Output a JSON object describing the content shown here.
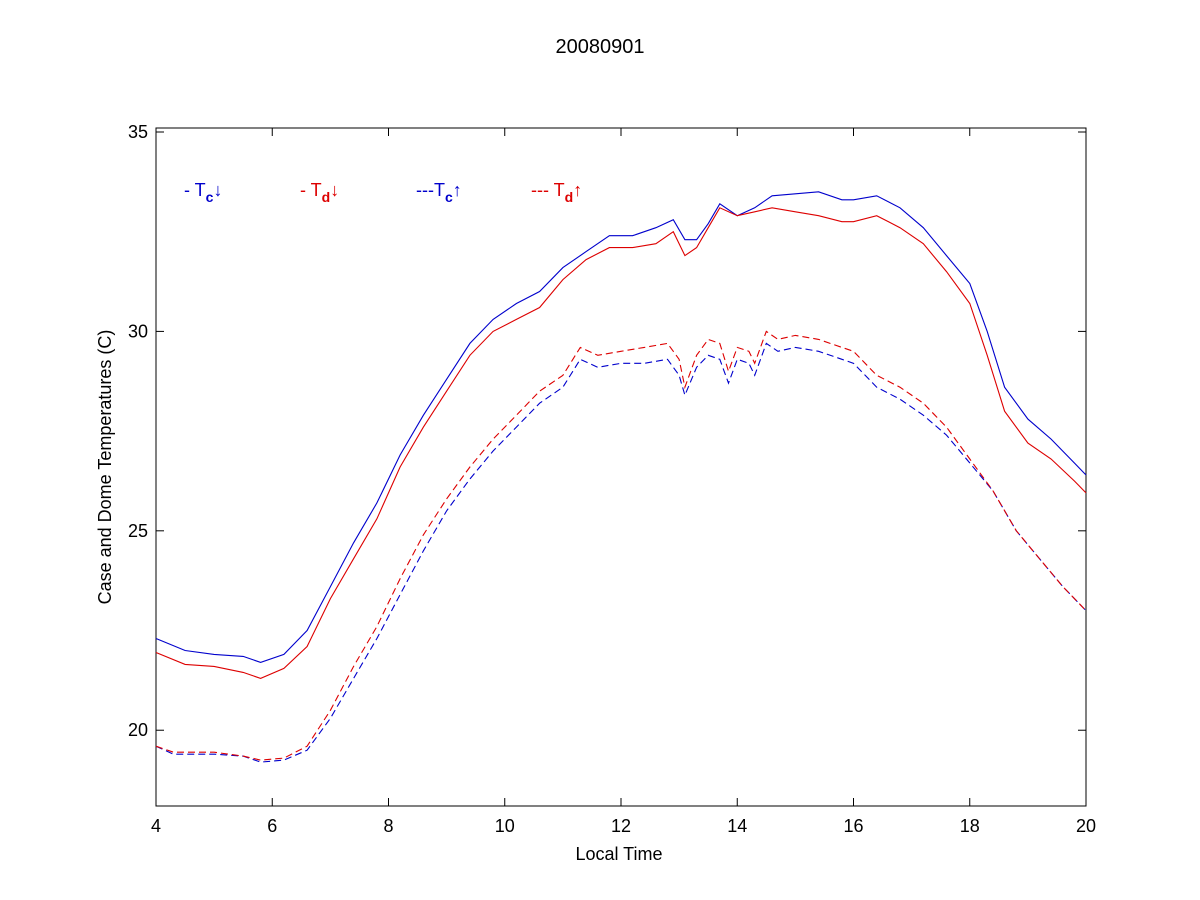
{
  "chart_data": {
    "type": "line",
    "title": "20080901",
    "xlabel": "Local Time",
    "ylabel": "Case and Dome Temperatures (C)",
    "xlim": [
      4,
      20
    ],
    "ylim": [
      18.1,
      35.1
    ],
    "xticks": [
      4,
      6,
      8,
      10,
      12,
      14,
      16,
      18,
      20
    ],
    "yticks": [
      20,
      25,
      30,
      35
    ],
    "grid": false,
    "legend_position": "top-left",
    "series": [
      {
        "label_prefix": "- T",
        "label_sub": "c",
        "label_arrow": "↓",
        "color": "#0000cc",
        "dash": "solid",
        "x": [
          4.0,
          4.5,
          5.0,
          5.5,
          5.8,
          6.2,
          6.6,
          7.0,
          7.4,
          7.8,
          8.2,
          8.6,
          9.0,
          9.4,
          9.8,
          10.2,
          10.6,
          11.0,
          11.4,
          11.8,
          12.2,
          12.6,
          12.9,
          13.1,
          13.3,
          13.5,
          13.7,
          14.0,
          14.3,
          14.6,
          15.0,
          15.4,
          15.8,
          16.0,
          16.4,
          16.8,
          17.2,
          17.6,
          18.0,
          18.3,
          18.6,
          19.0,
          19.4,
          19.8,
          20.0
        ],
        "y": [
          22.3,
          22.0,
          21.9,
          21.85,
          21.7,
          21.9,
          22.5,
          23.6,
          24.7,
          25.7,
          26.9,
          27.9,
          28.8,
          29.7,
          30.3,
          30.7,
          31.0,
          31.6,
          32.0,
          32.4,
          32.4,
          32.6,
          32.8,
          32.3,
          32.3,
          32.7,
          33.2,
          32.9,
          33.1,
          33.4,
          33.45,
          33.5,
          33.3,
          33.3,
          33.4,
          33.1,
          32.6,
          31.9,
          31.2,
          30.0,
          28.6,
          27.8,
          27.3,
          26.7,
          26.4
        ]
      },
      {
        "label_prefix": "- T",
        "label_sub": "d",
        "label_arrow": "↓",
        "color": "#dd0000",
        "dash": "solid",
        "x": [
          4.0,
          4.5,
          5.0,
          5.5,
          5.8,
          6.2,
          6.6,
          7.0,
          7.4,
          7.8,
          8.2,
          8.6,
          9.0,
          9.4,
          9.8,
          10.2,
          10.6,
          11.0,
          11.4,
          11.8,
          12.2,
          12.6,
          12.9,
          13.1,
          13.3,
          13.5,
          13.7,
          14.0,
          14.3,
          14.6,
          15.0,
          15.4,
          15.8,
          16.0,
          16.4,
          16.8,
          17.2,
          17.6,
          18.0,
          18.3,
          18.6,
          19.0,
          19.4,
          19.8,
          20.0
        ],
        "y": [
          21.95,
          21.65,
          21.6,
          21.45,
          21.3,
          21.55,
          22.1,
          23.3,
          24.3,
          25.3,
          26.6,
          27.6,
          28.5,
          29.4,
          30.0,
          30.3,
          30.6,
          31.3,
          31.8,
          32.1,
          32.1,
          32.2,
          32.5,
          31.9,
          32.1,
          32.6,
          33.1,
          32.9,
          33.0,
          33.1,
          33.0,
          32.9,
          32.75,
          32.75,
          32.9,
          32.6,
          32.2,
          31.5,
          30.7,
          29.4,
          28.0,
          27.2,
          26.8,
          26.25,
          25.95
        ]
      },
      {
        "label_prefix": "---T",
        "label_sub": "c",
        "label_arrow": "↑",
        "color": "#0000cc",
        "dash": "dashed",
        "x": [
          4.0,
          4.3,
          5.0,
          5.5,
          5.8,
          6.2,
          6.6,
          7.0,
          7.4,
          7.8,
          8.2,
          8.6,
          9.0,
          9.4,
          9.8,
          10.2,
          10.6,
          11.0,
          11.3,
          11.6,
          12.0,
          12.4,
          12.8,
          13.0,
          13.1,
          13.3,
          13.5,
          13.7,
          13.85,
          14.0,
          14.2,
          14.3,
          14.5,
          14.7,
          15.0,
          15.4,
          15.8,
          16.0,
          16.4,
          16.8,
          17.2,
          17.6,
          18.0,
          18.4,
          18.8,
          19.2,
          19.6,
          20.0
        ],
        "y": [
          19.6,
          19.4,
          19.4,
          19.35,
          19.2,
          19.25,
          19.5,
          20.3,
          21.3,
          22.3,
          23.4,
          24.5,
          25.5,
          26.3,
          27.0,
          27.6,
          28.2,
          28.6,
          29.3,
          29.1,
          29.2,
          29.2,
          29.3,
          28.9,
          28.4,
          29.1,
          29.4,
          29.3,
          28.7,
          29.3,
          29.2,
          28.9,
          29.7,
          29.5,
          29.6,
          29.5,
          29.3,
          29.2,
          28.6,
          28.3,
          27.9,
          27.4,
          26.7,
          26.0,
          25.0,
          24.3,
          23.6,
          23.0
        ]
      },
      {
        "label_prefix": "--- T",
        "label_sub": "d",
        "label_arrow": "↑",
        "color": "#dd0000",
        "dash": "dashed",
        "x": [
          4.0,
          4.3,
          5.0,
          5.5,
          5.8,
          6.2,
          6.6,
          7.0,
          7.4,
          7.8,
          8.2,
          8.6,
          9.0,
          9.4,
          9.8,
          10.2,
          10.6,
          11.0,
          11.3,
          11.6,
          12.0,
          12.4,
          12.8,
          13.0,
          13.1,
          13.3,
          13.5,
          13.7,
          13.85,
          14.0,
          14.2,
          14.3,
          14.5,
          14.7,
          15.0,
          15.4,
          15.8,
          16.0,
          16.4,
          16.8,
          17.2,
          17.6,
          18.0,
          18.4,
          18.8,
          19.2,
          19.6,
          20.0
        ],
        "y": [
          19.6,
          19.45,
          19.45,
          19.35,
          19.25,
          19.3,
          19.6,
          20.5,
          21.6,
          22.6,
          23.8,
          24.9,
          25.8,
          26.6,
          27.3,
          27.9,
          28.5,
          28.9,
          29.6,
          29.4,
          29.5,
          29.6,
          29.7,
          29.3,
          28.6,
          29.4,
          29.8,
          29.7,
          29.0,
          29.6,
          29.5,
          29.2,
          30.0,
          29.8,
          29.9,
          29.8,
          29.6,
          29.5,
          28.9,
          28.6,
          28.2,
          27.6,
          26.8,
          26.0,
          25.0,
          24.3,
          23.6,
          23.0
        ]
      }
    ]
  }
}
